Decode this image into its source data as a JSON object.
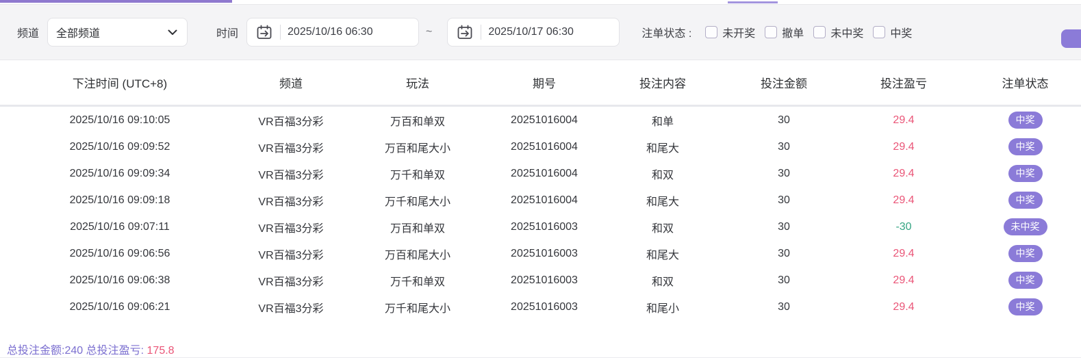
{
  "filters": {
    "channel_label": "频道",
    "channel_value": "全部频道",
    "time_label": "时间",
    "time_from": "2025/10/16 06:30",
    "time_to": "2025/10/17 06:30",
    "time_separator": "~",
    "status_label": "注单状态 :",
    "status_options": [
      {
        "label": "未开奖",
        "checked": false
      },
      {
        "label": "撤单",
        "checked": false
      },
      {
        "label": "未中奖",
        "checked": false
      },
      {
        "label": "中奖",
        "checked": false
      }
    ]
  },
  "icons": {
    "calendar": "calendar-range-icon",
    "chevron": "chevron-down-icon"
  },
  "table": {
    "headers": [
      "下注时间 (UTC+8)",
      "频道",
      "玩法",
      "期号",
      "投注内容",
      "投注金额",
      "投注盈亏",
      "注单状态"
    ],
    "rows": [
      {
        "time": "2025/10/16 09:10:05",
        "channel": "VR百福3分彩",
        "play": "万百和单双",
        "issue": "20251016004",
        "content": "和单",
        "amount": "30",
        "profit": "29.4",
        "status": "中奖"
      },
      {
        "time": "2025/10/16 09:09:52",
        "channel": "VR百福3分彩",
        "play": "万百和尾大小",
        "issue": "20251016004",
        "content": "和尾大",
        "amount": "30",
        "profit": "29.4",
        "status": "中奖"
      },
      {
        "time": "2025/10/16 09:09:34",
        "channel": "VR百福3分彩",
        "play": "万千和单双",
        "issue": "20251016004",
        "content": "和双",
        "amount": "30",
        "profit": "29.4",
        "status": "中奖"
      },
      {
        "time": "2025/10/16 09:09:18",
        "channel": "VR百福3分彩",
        "play": "万千和尾大小",
        "issue": "20251016004",
        "content": "和尾大",
        "amount": "30",
        "profit": "29.4",
        "status": "中奖"
      },
      {
        "time": "2025/10/16 09:07:11",
        "channel": "VR百福3分彩",
        "play": "万百和单双",
        "issue": "20251016003",
        "content": "和双",
        "amount": "30",
        "profit": "-30",
        "status": "未中奖"
      },
      {
        "time": "2025/10/16 09:06:56",
        "channel": "VR百福3分彩",
        "play": "万百和尾大小",
        "issue": "20251016003",
        "content": "和尾大",
        "amount": "30",
        "profit": "29.4",
        "status": "中奖"
      },
      {
        "time": "2025/10/16 09:06:38",
        "channel": "VR百福3分彩",
        "play": "万千和单双",
        "issue": "20251016003",
        "content": "和双",
        "amount": "30",
        "profit": "29.4",
        "status": "中奖"
      },
      {
        "time": "2025/10/16 09:06:21",
        "channel": "VR百福3分彩",
        "play": "万千和尾大小",
        "issue": "20251016003",
        "content": "和尾小",
        "amount": "30",
        "profit": "29.4",
        "status": "中奖"
      }
    ]
  },
  "summary": {
    "total_amount_text": "总投注金额:240",
    "total_profit_label": "总投注盈亏:",
    "total_profit_value": "175.8"
  },
  "colors": {
    "accent": "#8b7bd8",
    "progress": "#8f79cf",
    "progress_light": "#a394de",
    "profit_win": "#ea5577",
    "profit_loss": "#35a483",
    "summary_text": "#7b6fd0"
  }
}
